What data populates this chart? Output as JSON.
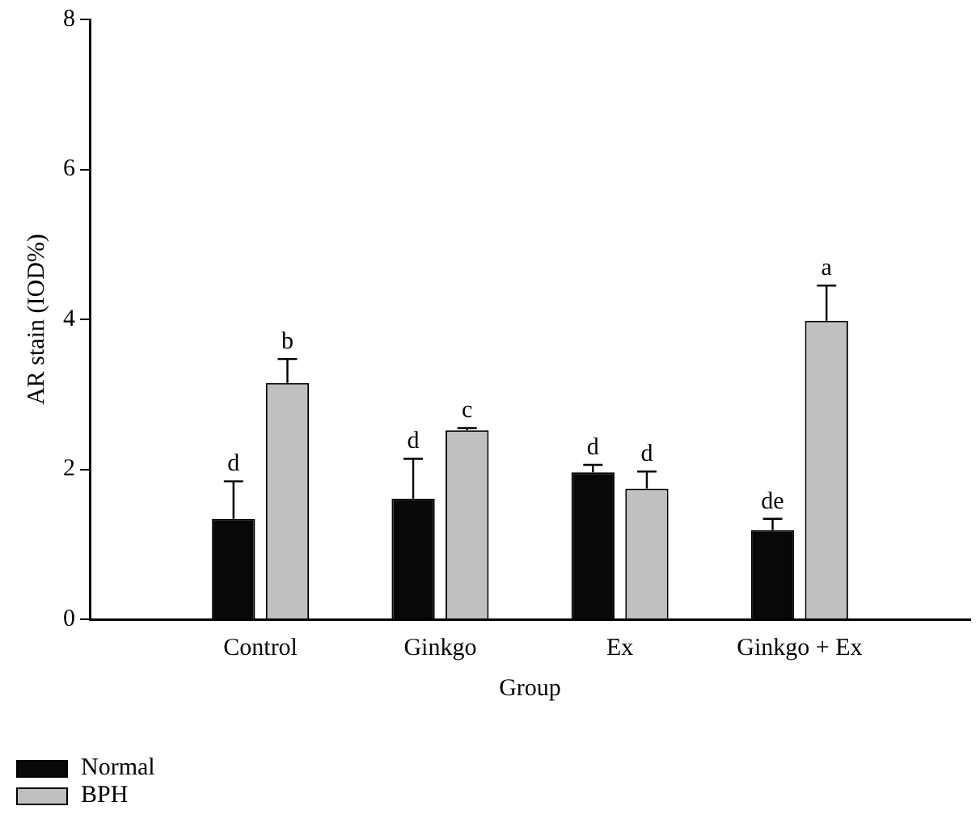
{
  "chart_data": {
    "type": "bar",
    "xlabel": "Group",
    "ylabel": "AR stain (IOD%)",
    "categories": [
      "Control",
      "Ginkgo",
      "Ex",
      "Ginkgo + Ex"
    ],
    "series": [
      {
        "name": "Normal",
        "color": "#080808",
        "values": [
          1.34,
          1.61,
          1.96,
          1.19
        ],
        "errors": [
          0.5,
          0.53,
          0.1,
          0.15
        ]
      },
      {
        "name": "BPH",
        "color": "#c0c0c0",
        "values": [
          3.15,
          2.52,
          1.74,
          3.98
        ],
        "errors": [
          0.32,
          0.03,
          0.23,
          0.47
        ]
      }
    ],
    "annotations": [
      "d",
      "d",
      "d",
      "de",
      "b",
      "c",
      "d",
      "a"
    ],
    "ylim": [
      0,
      8
    ],
    "yticks": [
      0,
      2,
      4,
      6,
      8
    ],
    "grid": false,
    "legend": "bottom left"
  }
}
